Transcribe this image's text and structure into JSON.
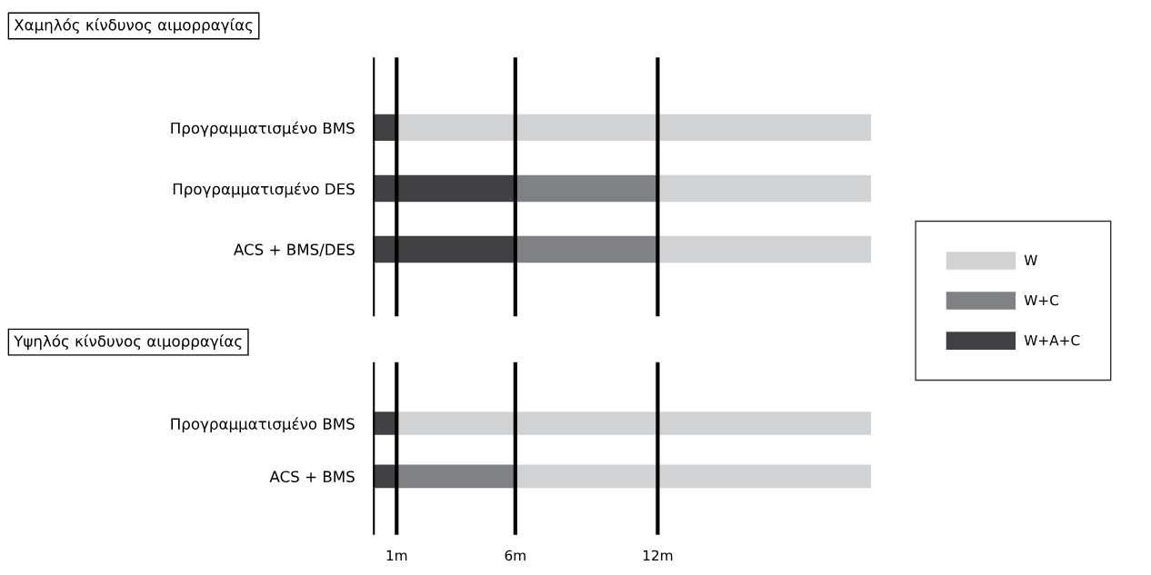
{
  "chart_data": [
    {
      "type": "bar",
      "orientation": "horizontal",
      "stacked": true,
      "title": "Χαμηλός κίνδυνος αιμορραγίας",
      "categories": [
        "Προγραμματισμένο BMS",
        "Προγραμματισμένο DES",
        "ACS + BMS/DES"
      ],
      "series": [
        {
          "name": "W+A+C",
          "color": "#414042",
          "values": [
            1,
            6,
            6
          ]
        },
        {
          "name": "W+C",
          "color": "#808184",
          "values": [
            null,
            6,
            6
          ]
        },
        {
          "name": "W",
          "color": "#d1d2d4",
          "values": [
            20,
            9,
            9
          ]
        }
      ],
      "xlim": [
        0,
        21
      ],
      "xticks": [
        {
          "value": 0,
          "label": null
        },
        {
          "value": 1,
          "label": null
        },
        {
          "value": 6,
          "label": null
        },
        {
          "value": 12,
          "label": null
        }
      ],
      "grid": "x",
      "legend": "right",
      "tick_labels": "y"
    },
    {
      "type": "bar",
      "orientation": "horizontal",
      "stacked": true,
      "title": "Υψηλός κίνδυνος αιμορραγίας",
      "categories": [
        "Προγραμματισμένο BMS",
        "ACS + BMS"
      ],
      "series": [
        {
          "color": "#414042",
          "values": [
            1,
            1
          ]
        },
        {
          "color": "#808184",
          "values": [
            null,
            5
          ]
        },
        {
          "color": "#d1d2d4",
          "values": [
            20,
            15
          ]
        }
      ],
      "xlim": [
        0,
        21
      ],
      "xticks": [
        {
          "value": 0,
          "label": null
        },
        {
          "value": 1,
          "label": "1m"
        },
        {
          "value": 6,
          "label": "6m"
        },
        {
          "value": 12,
          "label": "12m"
        }
      ],
      "grid": "x"
    }
  ]
}
